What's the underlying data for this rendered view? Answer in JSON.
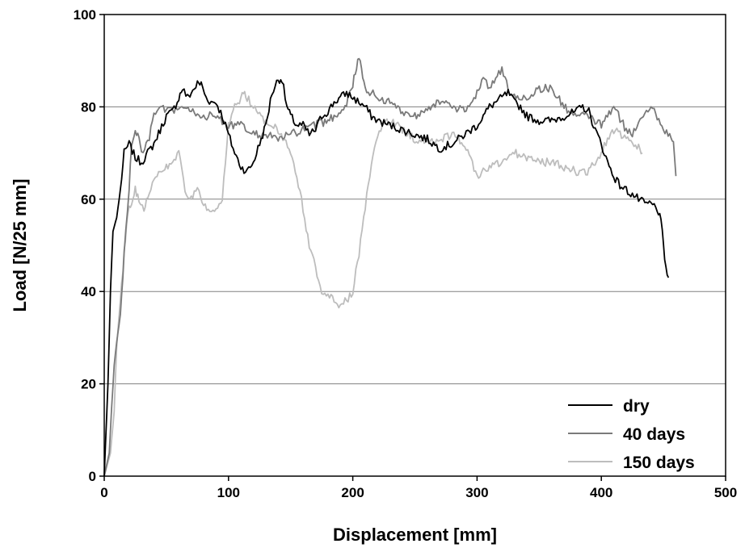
{
  "chart_data": {
    "type": "line",
    "title": "",
    "xlabel": "Displacement [mm]",
    "ylabel": "Load [N/25 mm]",
    "xlim": [
      0,
      500
    ],
    "ylim": [
      0,
      100
    ],
    "xticks": [
      0,
      100,
      200,
      300,
      400,
      500
    ],
    "yticks": [
      0,
      20,
      40,
      60,
      80,
      100
    ],
    "grid": "horizontal",
    "legend_position": "bottom-right",
    "series": [
      {
        "name": "dry",
        "color": "#000000",
        "x": [
          0,
          3,
          5,
          7,
          10,
          13,
          16,
          20,
          25,
          30,
          35,
          40,
          45,
          50,
          55,
          60,
          63,
          67,
          70,
          75,
          78,
          82,
          86,
          90,
          95,
          100,
          105,
          110,
          115,
          120,
          125,
          130,
          135,
          140,
          143,
          147,
          150,
          155,
          160,
          165,
          170,
          175,
          180,
          185,
          190,
          195,
          200,
          205,
          210,
          215,
          220,
          230,
          240,
          250,
          260,
          270,
          280,
          290,
          300,
          305,
          310,
          315,
          320,
          325,
          330,
          335,
          340,
          350,
          360,
          370,
          380,
          385,
          390,
          395,
          400,
          405,
          410,
          415,
          420,
          425,
          430,
          435,
          440,
          445,
          448,
          450,
          452,
          454
        ],
        "y": [
          0,
          20,
          40,
          53,
          56,
          62,
          70,
          72,
          69,
          68,
          70,
          72,
          75,
          78,
          79,
          82,
          84,
          82,
          83,
          85,
          85,
          82,
          81,
          81,
          78,
          74,
          70,
          67,
          66,
          68,
          72,
          76,
          83,
          86,
          86,
          80,
          78,
          76,
          76,
          74,
          75,
          78,
          79,
          81,
          82,
          83,
          82,
          81,
          80,
          78,
          77,
          76,
          75,
          74,
          73,
          71,
          72,
          74,
          76,
          78,
          80,
          81,
          82,
          83,
          81,
          80,
          78,
          77,
          77,
          78,
          79,
          80,
          79,
          75,
          72,
          68,
          65,
          63,
          62,
          61,
          60,
          59,
          59,
          58,
          55,
          50,
          45,
          43
        ]
      },
      {
        "name": "40 days",
        "color": "#7a7a7a",
        "x": [
          0,
          4,
          6,
          8,
          10,
          13,
          16,
          20,
          22,
          25,
          28,
          30,
          35,
          40,
          45,
          50,
          55,
          60,
          70,
          80,
          90,
          100,
          110,
          120,
          130,
          140,
          150,
          160,
          170,
          180,
          190,
          195,
          200,
          203,
          205,
          207,
          210,
          215,
          220,
          230,
          240,
          250,
          260,
          270,
          280,
          290,
          300,
          305,
          310,
          315,
          320,
          325,
          330,
          340,
          350,
          360,
          370,
          380,
          390,
          400,
          410,
          420,
          425,
          430,
          435,
          440,
          445,
          450,
          455,
          458,
          460
        ],
        "y": [
          0,
          5,
          15,
          24,
          29,
          35,
          48,
          62,
          72,
          75,
          73,
          70,
          72,
          78,
          80,
          79,
          79,
          80,
          79,
          78,
          78,
          76,
          76,
          74,
          74,
          73,
          74,
          75,
          76,
          77,
          79,
          81,
          85,
          88,
          91,
          88,
          84,
          83,
          82,
          81,
          79,
          78,
          80,
          81,
          80,
          79,
          83,
          87,
          84,
          86,
          88,
          84,
          82,
          82,
          84,
          84,
          80,
          78,
          78,
          76,
          80,
          75,
          74,
          77,
          79,
          80,
          78,
          75,
          74,
          72,
          65
        ]
      },
      {
        "name": "150 days",
        "color": "#bdbdbd",
        "x": [
          0,
          5,
          8,
          10,
          12,
          15,
          18,
          20,
          23,
          25,
          28,
          32,
          35,
          40,
          45,
          50,
          55,
          60,
          65,
          70,
          75,
          80,
          85,
          90,
          95,
          100,
          105,
          110,
          113,
          115,
          120,
          125,
          130,
          135,
          140,
          145,
          150,
          155,
          160,
          165,
          170,
          175,
          180,
          185,
          190,
          195,
          200,
          205,
          210,
          215,
          220,
          225,
          230,
          240,
          250,
          260,
          270,
          280,
          290,
          300,
          310,
          320,
          330,
          340,
          350,
          360,
          370,
          380,
          390,
          400,
          405,
          410,
          415,
          420,
          425,
          430,
          433
        ],
        "y": [
          0,
          5,
          14,
          28,
          35,
          45,
          55,
          58,
          60,
          62,
          60,
          58,
          61,
          64,
          66,
          67,
          68,
          70,
          62,
          60,
          62,
          59,
          57,
          57,
          60,
          76,
          80,
          82,
          83,
          82,
          80,
          78,
          77,
          76,
          75,
          73,
          70,
          65,
          58,
          50,
          45,
          40,
          39,
          38,
          37,
          38,
          40,
          48,
          58,
          68,
          74,
          76,
          77,
          75,
          73,
          72,
          73,
          74,
          72,
          65,
          67,
          68,
          70,
          69,
          68,
          68,
          67,
          66,
          66,
          70,
          73,
          75,
          74,
          73,
          72,
          71,
          70
        ]
      }
    ]
  }
}
